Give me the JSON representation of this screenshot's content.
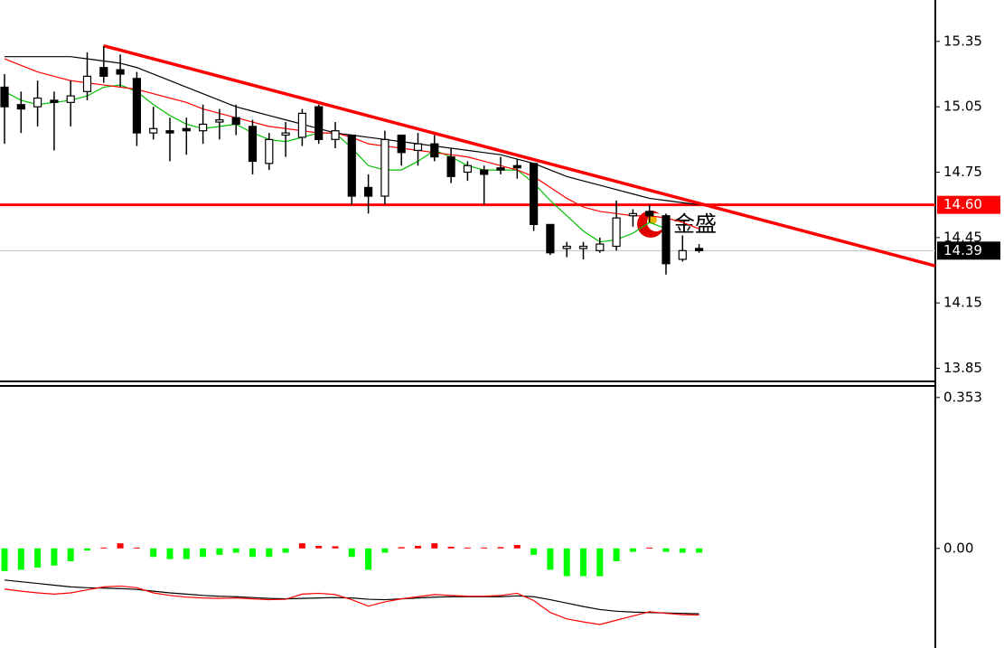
{
  "chart_data": [
    {
      "type": "candlestick",
      "up_color": "#ffffff",
      "down_color": "#000000",
      "candles": [
        {
          "open": 15.14,
          "high": 15.2,
          "low": 14.88,
          "close": 15.05
        },
        {
          "open": 15.06,
          "high": 15.12,
          "low": 14.93,
          "close": 15.04
        },
        {
          "open": 15.05,
          "high": 15.17,
          "low": 14.96,
          "close": 15.09
        },
        {
          "open": 15.08,
          "high": 15.12,
          "low": 14.85,
          "close": 15.07
        },
        {
          "open": 15.07,
          "high": 15.17,
          "low": 14.96,
          "close": 15.1
        },
        {
          "open": 15.12,
          "high": 15.3,
          "low": 15.08,
          "close": 15.19
        },
        {
          "open": 15.23,
          "high": 15.33,
          "low": 15.16,
          "close": 15.19
        },
        {
          "open": 15.22,
          "high": 15.29,
          "low": 15.14,
          "close": 15.2
        },
        {
          "open": 15.18,
          "high": 15.21,
          "low": 14.87,
          "close": 14.93
        },
        {
          "open": 14.93,
          "high": 15.05,
          "low": 14.9,
          "close": 14.95
        },
        {
          "open": 14.94,
          "high": 15.0,
          "low": 14.8,
          "close": 14.93
        },
        {
          "open": 14.95,
          "high": 15.0,
          "low": 14.83,
          "close": 14.94
        },
        {
          "open": 14.94,
          "high": 15.06,
          "low": 14.88,
          "close": 14.97
        },
        {
          "open": 14.98,
          "high": 15.04,
          "low": 14.9,
          "close": 14.99
        },
        {
          "open": 15.0,
          "high": 15.06,
          "low": 14.92,
          "close": 14.97
        },
        {
          "open": 14.96,
          "high": 14.99,
          "low": 14.74,
          "close": 14.8
        },
        {
          "open": 14.79,
          "high": 14.93,
          "low": 14.76,
          "close": 14.9
        },
        {
          "open": 14.92,
          "high": 14.98,
          "low": 14.82,
          "close": 14.93
        },
        {
          "open": 14.91,
          "high": 15.04,
          "low": 14.87,
          "close": 15.02
        },
        {
          "open": 15.05,
          "high": 15.06,
          "low": 14.88,
          "close": 14.9
        },
        {
          "open": 14.9,
          "high": 14.98,
          "low": 14.86,
          "close": 14.94
        },
        {
          "open": 14.92,
          "high": 14.92,
          "low": 14.6,
          "close": 14.64
        },
        {
          "open": 14.68,
          "high": 14.74,
          "low": 14.56,
          "close": 14.64
        },
        {
          "open": 14.64,
          "high": 14.94,
          "low": 14.6,
          "close": 14.9
        },
        {
          "open": 14.92,
          "high": 14.92,
          "low": 14.78,
          "close": 14.84
        },
        {
          "open": 14.85,
          "high": 14.93,
          "low": 14.78,
          "close": 14.88
        },
        {
          "open": 14.88,
          "high": 14.92,
          "low": 14.8,
          "close": 14.82
        },
        {
          "open": 14.82,
          "high": 14.86,
          "low": 14.7,
          "close": 14.73
        },
        {
          "open": 14.75,
          "high": 14.8,
          "low": 14.71,
          "close": 14.78
        },
        {
          "open": 14.76,
          "high": 14.78,
          "low": 14.6,
          "close": 14.74
        },
        {
          "open": 14.77,
          "high": 14.82,
          "low": 14.74,
          "close": 14.76
        },
        {
          "open": 14.78,
          "high": 14.81,
          "low": 14.72,
          "close": 14.77
        },
        {
          "open": 14.79,
          "high": 14.79,
          "low": 14.48,
          "close": 14.51
        },
        {
          "open": 14.51,
          "high": 14.51,
          "low": 14.37,
          "close": 14.38
        },
        {
          "open": 14.4,
          "high": 14.43,
          "low": 14.36,
          "close": 14.41
        },
        {
          "open": 14.4,
          "high": 14.43,
          "low": 14.35,
          "close": 14.41
        },
        {
          "open": 14.39,
          "high": 14.45,
          "low": 14.38,
          "close": 14.42
        },
        {
          "open": 14.41,
          "high": 14.62,
          "low": 14.39,
          "close": 14.54
        },
        {
          "open": 14.55,
          "high": 14.58,
          "low": 14.5,
          "close": 14.56
        },
        {
          "open": 14.57,
          "high": 14.6,
          "low": 14.52,
          "close": 14.55
        },
        {
          "open": 14.55,
          "high": 14.56,
          "low": 14.28,
          "close": 14.33
        },
        {
          "open": 14.35,
          "high": 14.46,
          "low": 14.34,
          "close": 14.39
        },
        {
          "open": 14.4,
          "high": 14.42,
          "low": 14.38,
          "close": 14.39
        }
      ],
      "series": [
        {
          "color": "#00c000",
          "values": [
            15.12,
            15.08,
            15.06,
            15.07,
            15.08,
            15.1,
            15.14,
            15.15,
            15.12,
            15.06,
            15.01,
            14.97,
            14.95,
            14.96,
            14.97,
            14.93,
            14.9,
            14.89,
            14.91,
            14.93,
            14.93,
            14.86,
            14.78,
            14.76,
            14.76,
            14.8,
            14.85,
            14.82,
            14.78,
            14.76,
            14.76,
            14.76,
            14.7,
            14.62,
            14.55,
            14.48,
            14.43,
            14.44,
            14.47,
            14.52,
            14.49,
            null,
            null
          ]
        },
        {
          "color": "#ff0000",
          "values": [
            15.27,
            15.24,
            15.21,
            15.19,
            15.17,
            15.16,
            15.15,
            15.14,
            15.13,
            15.11,
            15.09,
            15.07,
            15.04,
            15.02,
            15.0,
            14.98,
            14.96,
            14.95,
            14.94,
            14.93,
            14.93,
            14.91,
            14.88,
            14.87,
            14.86,
            14.85,
            14.84,
            14.83,
            14.82,
            14.8,
            14.78,
            14.76,
            14.73,
            14.68,
            14.63,
            14.59,
            14.57,
            14.56,
            14.55,
            14.55,
            14.54,
            14.52,
            14.49
          ]
        },
        {
          "color": "#000000",
          "values": [
            15.28,
            15.28,
            15.28,
            15.28,
            15.28,
            15.27,
            15.26,
            15.25,
            15.23,
            15.2,
            15.17,
            15.14,
            15.11,
            15.08,
            15.05,
            15.03,
            15.01,
            14.99,
            14.97,
            14.95,
            14.93,
            14.92,
            14.91,
            14.9,
            14.89,
            14.88,
            14.87,
            14.86,
            14.85,
            14.84,
            14.83,
            14.81,
            14.79,
            14.76,
            14.73,
            14.71,
            14.69,
            14.67,
            14.65,
            14.63,
            14.62,
            14.61,
            14.6
          ]
        }
      ],
      "trendline": {
        "color": "#ff0000",
        "values": [
          15.33,
          14.32
        ]
      },
      "hlines": [
        {
          "value": {
            "value": 14.6,
            "label": "14.60"
          },
          "color": "#ff0000",
          "label_bg": "#ff0000"
        },
        {
          "value": 14.39,
          "color": "#c0c0c0",
          "label_bg": "#000000"
        }
      ],
      "ylim": [
        13.79,
        15.54
      ],
      "yticks": [
        15.35,
        15.05,
        14.75,
        14.45,
        14.15,
        13.85
      ],
      "watermark": "金盛"
    },
    {
      "type": "macd",
      "up_color": "#ff0000",
      "down_color": "#00ff00",
      "values": [
        -0.053,
        -0.05,
        -0.045,
        -0.04,
        -0.03,
        -0.005,
        0.002,
        0.012,
        0.002,
        -0.02,
        -0.025,
        -0.025,
        -0.02,
        -0.015,
        -0.01,
        -0.02,
        -0.02,
        -0.01,
        0.012,
        0.006,
        0.005,
        -0.02,
        -0.05,
        -0.01,
        0.003,
        0.006,
        0.012,
        0.004,
        0.002,
        0.002,
        0.003,
        0.008,
        -0.015,
        -0.05,
        -0.065,
        -0.065,
        -0.065,
        -0.03,
        -0.008,
        0.002,
        -0.008,
        -0.01,
        -0.01
      ],
      "series": [
        {
          "color": "#000000",
          "values": [
            -0.074,
            -0.078,
            -0.082,
            -0.086,
            -0.09,
            -0.092,
            -0.093,
            -0.094,
            -0.096,
            -0.1,
            -0.104,
            -0.107,
            -0.11,
            -0.112,
            -0.113,
            -0.115,
            -0.117,
            -0.118,
            -0.117,
            -0.116,
            -0.115,
            -0.116,
            -0.119,
            -0.12,
            -0.118,
            -0.116,
            -0.114,
            -0.113,
            -0.113,
            -0.113,
            -0.113,
            -0.111,
            -0.113,
            -0.12,
            -0.128,
            -0.136,
            -0.143,
            -0.147,
            -0.149,
            -0.15,
            -0.151,
            -0.152,
            -0.153
          ]
        },
        {
          "color": "#ff0000",
          "values": [
            -0.095,
            -0.1,
            -0.104,
            -0.107,
            -0.104,
            -0.097,
            -0.09,
            -0.088,
            -0.092,
            -0.104,
            -0.11,
            -0.114,
            -0.116,
            -0.117,
            -0.116,
            -0.118,
            -0.12,
            -0.119,
            -0.107,
            -0.105,
            -0.108,
            -0.12,
            -0.135,
            -0.125,
            -0.118,
            -0.113,
            -0.108,
            -0.11,
            -0.112,
            -0.112,
            -0.11,
            -0.105,
            -0.122,
            -0.15,
            -0.165,
            -0.172,
            -0.178,
            -0.168,
            -0.158,
            -0.148,
            -0.152,
            -0.155,
            -0.156
          ]
        }
      ],
      "ylim": [
        -0.233,
        0.378
      ],
      "yticks": [
        0.353,
        {
          "value": 0,
          "label": "0.00"
        }
      ]
    }
  ]
}
